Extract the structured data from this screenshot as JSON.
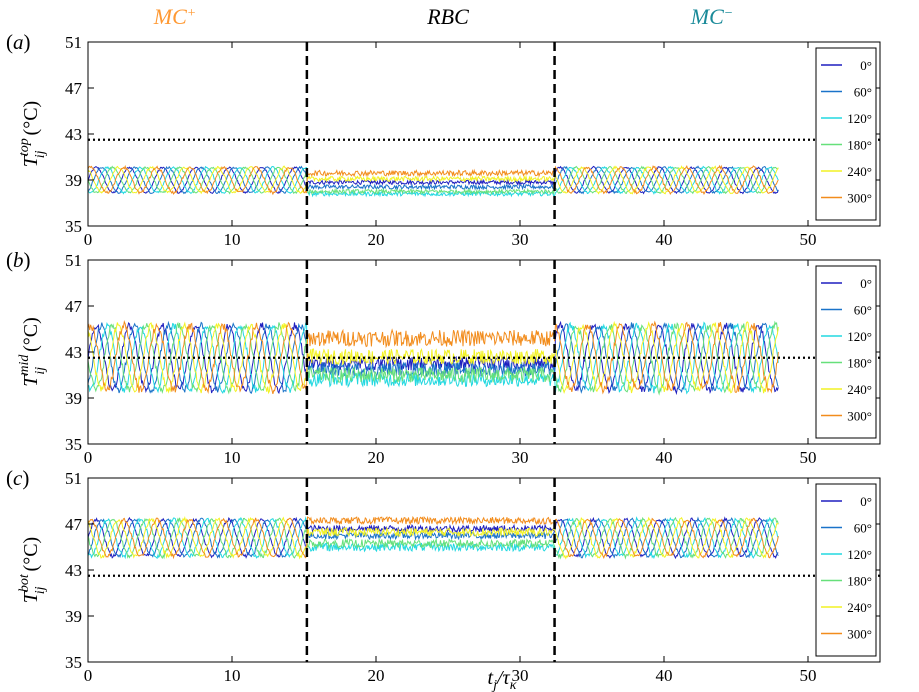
{
  "figure": {
    "regimes": [
      {
        "label": "MC",
        "superscript": "+",
        "color": "#ff9933"
      },
      {
        "label": "RBC",
        "superscript": "",
        "color": "#000000"
      },
      {
        "label": "MC",
        "superscript": "−",
        "color": "#1a8a99"
      }
    ],
    "xlabel": {
      "main": "t",
      "sub1": "j",
      "slash": "/",
      "tau": "τ",
      "sub2": "κ"
    }
  },
  "chart_data": [
    {
      "type": "line",
      "panel": "(a)",
      "ylabel": {
        "main": "T",
        "sub": "ij",
        "sup": "top",
        "unit": "(°C)"
      },
      "xlim": [
        0,
        55
      ],
      "ylim": [
        35,
        51
      ],
      "xticks": [
        0,
        10,
        20,
        30,
        40,
        50
      ],
      "yticks": [
        35,
        39,
        43,
        47,
        51
      ],
      "regime_boundaries": [
        15.2,
        32.4
      ],
      "reference_line": 42.5,
      "data_end": 48,
      "series": [
        {
          "name": "0°",
          "color": "#1f1fbf",
          "mc_mean": 39.0,
          "mc_amp": 1.1,
          "phase_deg": 0,
          "rbc_level": 38.8,
          "noise": 0.15
        },
        {
          "name": "60°",
          "color": "#1a73c9",
          "mc_mean": 39.0,
          "mc_amp": 1.1,
          "phase_deg": 60,
          "rbc_level": 38.4,
          "noise": 0.15
        },
        {
          "name": "120°",
          "color": "#22d8e0",
          "mc_mean": 39.0,
          "mc_amp": 1.1,
          "phase_deg": 120,
          "rbc_level": 37.8,
          "noise": 0.15
        },
        {
          "name": "180°",
          "color": "#66e07a",
          "mc_mean": 39.0,
          "mc_amp": 1.1,
          "phase_deg": 180,
          "rbc_level": 38.0,
          "noise": 0.15
        },
        {
          "name": "240°",
          "color": "#f2f224",
          "mc_mean": 39.0,
          "mc_amp": 1.1,
          "phase_deg": 240,
          "rbc_level": 39.1,
          "noise": 0.18
        },
        {
          "name": "300°",
          "color": "#f28c1c",
          "mc_mean": 39.0,
          "mc_amp": 1.1,
          "phase_deg": 300,
          "rbc_level": 39.6,
          "noise": 0.2
        }
      ]
    },
    {
      "type": "line",
      "panel": "(b)",
      "ylabel": {
        "main": "T",
        "sub": "ij",
        "sup": "mid",
        "unit": "(°C)"
      },
      "xlim": [
        0,
        55
      ],
      "ylim": [
        35,
        51
      ],
      "xticks": [
        0,
        10,
        20,
        30,
        40,
        50
      ],
      "yticks": [
        35,
        39,
        43,
        47,
        51
      ],
      "regime_boundaries": [
        15.2,
        32.4
      ],
      "reference_line": 42.5,
      "data_end": 48,
      "series": [
        {
          "name": "0°",
          "color": "#1f1fbf",
          "mc_mean": 42.5,
          "mc_amp": 2.8,
          "phase_deg": 0,
          "rbc_level": 42.0,
          "noise": 0.5
        },
        {
          "name": "60°",
          "color": "#1a73c9",
          "mc_mean": 42.5,
          "mc_amp": 2.8,
          "phase_deg": 60,
          "rbc_level": 41.5,
          "noise": 0.5
        },
        {
          "name": "120°",
          "color": "#22d8e0",
          "mc_mean": 42.5,
          "mc_amp": 2.8,
          "phase_deg": 120,
          "rbc_level": 40.6,
          "noise": 0.5
        },
        {
          "name": "180°",
          "color": "#66e07a",
          "mc_mean": 42.5,
          "mc_amp": 2.8,
          "phase_deg": 180,
          "rbc_level": 41.0,
          "noise": 0.55
        },
        {
          "name": "240°",
          "color": "#f2f224",
          "mc_mean": 42.5,
          "mc_amp": 2.8,
          "phase_deg": 240,
          "rbc_level": 42.6,
          "noise": 0.55
        },
        {
          "name": "300°",
          "color": "#f28c1c",
          "mc_mean": 42.5,
          "mc_amp": 2.8,
          "phase_deg": 300,
          "rbc_level": 44.2,
          "noise": 0.6
        }
      ]
    },
    {
      "type": "line",
      "panel": "(c)",
      "ylabel": {
        "main": "T",
        "sub": "ij",
        "sup": "bot",
        "unit": "(°C)"
      },
      "xlim": [
        0,
        55
      ],
      "ylim": [
        35,
        51
      ],
      "xticks": [
        0,
        10,
        20,
        30,
        40,
        50
      ],
      "yticks": [
        35,
        39,
        43,
        47,
        51
      ],
      "regime_boundaries": [
        15.2,
        32.4
      ],
      "reference_line": 42.5,
      "data_end": 48,
      "series": [
        {
          "name": "0°",
          "color": "#1f1fbf",
          "mc_mean": 45.8,
          "mc_amp": 1.6,
          "phase_deg": 0,
          "rbc_level": 46.6,
          "noise": 0.25
        },
        {
          "name": "60°",
          "color": "#1a73c9",
          "mc_mean": 45.8,
          "mc_amp": 1.6,
          "phase_deg": 60,
          "rbc_level": 46.0,
          "noise": 0.25
        },
        {
          "name": "120°",
          "color": "#22d8e0",
          "mc_mean": 45.8,
          "mc_amp": 1.6,
          "phase_deg": 120,
          "rbc_level": 45.0,
          "noise": 0.3
        },
        {
          "name": "180°",
          "color": "#66e07a",
          "mc_mean": 45.8,
          "mc_amp": 1.6,
          "phase_deg": 180,
          "rbc_level": 45.3,
          "noise": 0.3
        },
        {
          "name": "240°",
          "color": "#f2f224",
          "mc_mean": 45.8,
          "mc_amp": 1.6,
          "phase_deg": 240,
          "rbc_level": 46.3,
          "noise": 0.3
        },
        {
          "name": "300°",
          "color": "#f28c1c",
          "mc_mean": 45.8,
          "mc_amp": 1.6,
          "phase_deg": 300,
          "rbc_level": 47.3,
          "noise": 0.25
        }
      ]
    }
  ]
}
